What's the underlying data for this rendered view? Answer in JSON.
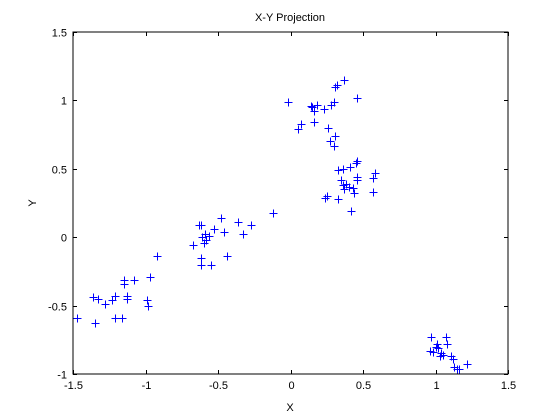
{
  "chart_data": {
    "type": "scatter",
    "title": "X-Y Projection",
    "xlabel": "X",
    "ylabel": "Y",
    "xlim": [
      -1.5,
      1.5
    ],
    "ylim": [
      -1,
      1.5
    ],
    "x_ticks": [
      -1.5,
      -1,
      -0.5,
      0,
      0.5,
      1,
      1.5
    ],
    "y_ticks": [
      -1,
      -0.5,
      0,
      0.5,
      1,
      1.5
    ],
    "x_tick_labels": [
      "-1.5",
      "-1",
      "-0.5",
      "0",
      "0.5",
      "1",
      "1.5"
    ],
    "y_tick_labels": [
      "-1",
      "-0.5",
      "0",
      "0.5",
      "1",
      "1.5"
    ],
    "grid": false,
    "marker": "+",
    "color": "#0000ff",
    "series": [
      {
        "points": [
          [
            -1.47,
            -0.59
          ],
          [
            -1.36,
            -0.44
          ],
          [
            -1.35,
            -0.63
          ],
          [
            -1.33,
            -0.45
          ],
          [
            -1.28,
            -0.49
          ],
          [
            -1.23,
            -0.46
          ],
          [
            -1.21,
            -0.43
          ],
          [
            -1.21,
            -0.59
          ],
          [
            -1.16,
            -0.59
          ],
          [
            -1.15,
            -0.31
          ],
          [
            -1.15,
            -0.34
          ],
          [
            -1.13,
            -0.43
          ],
          [
            -1.13,
            -0.45
          ],
          [
            -1.08,
            -0.31
          ],
          [
            -0.99,
            -0.46
          ],
          [
            -0.98,
            -0.5
          ],
          [
            -0.97,
            -0.29
          ],
          [
            -0.92,
            -0.14
          ],
          [
            -0.67,
            -0.06
          ],
          [
            -0.63,
            0.09
          ],
          [
            -0.62,
            0.09
          ],
          [
            -0.62,
            -0.15
          ],
          [
            -0.62,
            -0.2
          ],
          [
            -0.61,
            0.0
          ],
          [
            -0.6,
            -0.04
          ],
          [
            -0.59,
            0.02
          ],
          [
            -0.58,
            -0.02
          ],
          [
            -0.56,
            0.01
          ],
          [
            -0.55,
            -0.2
          ],
          [
            -0.53,
            0.06
          ],
          [
            -0.48,
            0.14
          ],
          [
            -0.46,
            0.04
          ],
          [
            -0.44,
            -0.14
          ],
          [
            -0.36,
            0.11
          ],
          [
            -0.33,
            0.02
          ],
          [
            -0.27,
            0.09
          ],
          [
            -0.12,
            0.18
          ],
          [
            -0.02,
            0.99
          ],
          [
            0.05,
            0.79
          ],
          [
            0.07,
            0.83
          ],
          [
            0.14,
            0.96
          ],
          [
            0.15,
            0.95
          ],
          [
            0.16,
            0.84
          ],
          [
            0.16,
            0.92
          ],
          [
            0.18,
            0.97
          ],
          [
            0.23,
            0.94
          ],
          [
            0.24,
            0.29
          ],
          [
            0.25,
            0.3
          ],
          [
            0.26,
            0.8
          ],
          [
            0.27,
            0.7
          ],
          [
            0.28,
            0.97
          ],
          [
            0.3,
            0.67
          ],
          [
            0.3,
            0.99
          ],
          [
            0.31,
            0.74
          ],
          [
            0.31,
            1.1
          ],
          [
            0.32,
            1.11
          ],
          [
            0.33,
            0.28
          ],
          [
            0.33,
            0.49
          ],
          [
            0.35,
            0.42
          ],
          [
            0.36,
            0.38
          ],
          [
            0.36,
            0.5
          ],
          [
            0.37,
            0.35
          ],
          [
            0.37,
            1.15
          ],
          [
            0.38,
            0.39
          ],
          [
            0.4,
            0.37
          ],
          [
            0.41,
            0.51
          ],
          [
            0.42,
            0.19
          ],
          [
            0.43,
            0.36
          ],
          [
            0.44,
            0.32
          ],
          [
            0.45,
            0.54
          ],
          [
            0.46,
            0.42
          ],
          [
            0.46,
            0.44
          ],
          [
            0.46,
            0.56
          ],
          [
            0.46,
            1.02
          ],
          [
            0.57,
            0.33
          ],
          [
            0.57,
            0.43
          ],
          [
            0.58,
            0.47
          ],
          [
            0.96,
            -0.83
          ],
          [
            0.97,
            -0.73
          ],
          [
            0.98,
            -0.84
          ],
          [
            1.0,
            -0.8
          ],
          [
            1.01,
            -0.78
          ],
          [
            1.02,
            -0.81
          ],
          [
            1.03,
            -0.87
          ],
          [
            1.04,
            -0.85
          ],
          [
            1.05,
            -0.86
          ],
          [
            1.07,
            -0.73
          ],
          [
            1.08,
            -0.78
          ],
          [
            1.11,
            -0.87
          ],
          [
            1.12,
            -0.89
          ],
          [
            1.13,
            -0.95
          ],
          [
            1.15,
            -0.96
          ],
          [
            1.16,
            -0.96
          ],
          [
            1.22,
            -0.93
          ]
        ]
      }
    ]
  }
}
